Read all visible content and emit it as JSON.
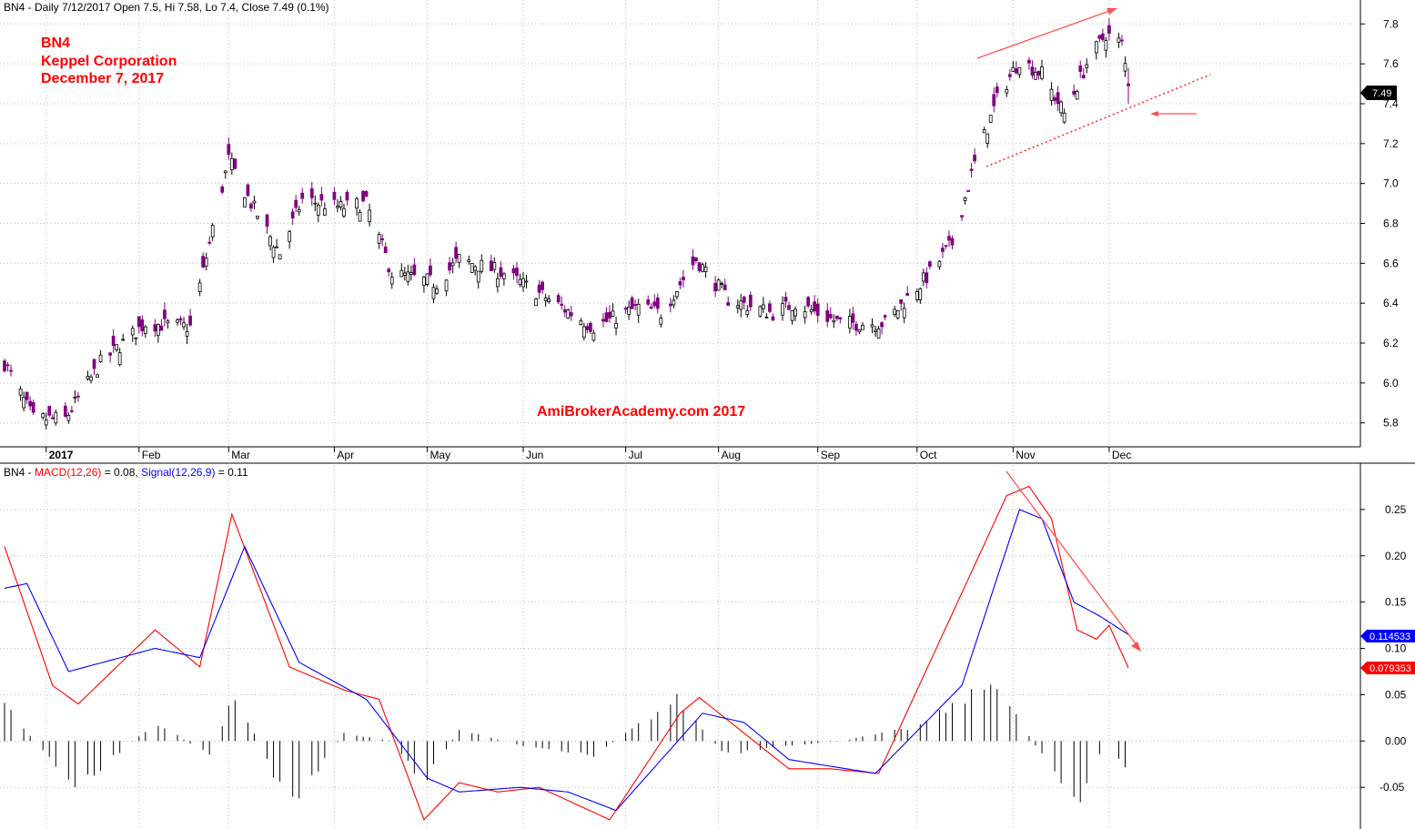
{
  "panels": {
    "price": {
      "header": "BN4 - Daily 7/12/2017 Open 7.5, Hi 7.58, Lo 7.4, Close 7.49 (0.1%)",
      "y_ticks": [
        "7.8",
        "7.6",
        "7.4",
        "7.2",
        "7.0",
        "6.8",
        "6.6",
        "6.4",
        "6.2",
        "6.0",
        "5.8"
      ],
      "last_price_label": "7.49"
    },
    "macd": {
      "header_prefix": "BN4 - ",
      "header_macd": "MACD(12,26)",
      "header_mid": " = 0.08, ",
      "header_signal": "Signal(12,26,9)",
      "header_suffix": " = 0.11",
      "y_ticks": [
        "0.25",
        "0.20",
        "0.15",
        "0.10",
        "0.05",
        "0.00",
        "-0.05"
      ],
      "signal_label": "0.114533",
      "macd_label": "0.079353"
    }
  },
  "x_ticks": [
    "2017",
    "Feb",
    "Mar",
    "Apr",
    "May",
    "Jun",
    "Jul",
    "Aug",
    "Sep",
    "Oct",
    "Nov",
    "Dec"
  ],
  "annotations": {
    "line1": "BN4",
    "line2": "Keppel Corporation",
    "line3": "December 7, 2017",
    "watermark": "AmiBrokerAcademy.com  2017"
  },
  "colors": {
    "bull_candle": "#ffffff",
    "bear_candle": "#800080",
    "macd_line": "#ff0000",
    "signal_line": "#0000ff",
    "histogram": "#000000",
    "annotation": "#ff0000",
    "trendline": "#ff4a4a"
  },
  "chart_data": [
    {
      "type": "candlestick",
      "title": "BN4 - Daily 7/12/2017 Open 7.5, Hi 7.58, Lo 7.4, Close 7.49 (0.1%)",
      "ylim": [
        5.68,
        7.92
      ],
      "x_range": [
        "2016-12-21",
        "2017-12-07"
      ],
      "grid": true,
      "close_keypoints": [
        [
          "2016-12-21",
          6.1
        ],
        [
          "2016-12-30",
          5.82
        ],
        [
          "2017-01-09",
          5.82
        ],
        [
          "2017-01-20",
          6.1
        ],
        [
          "2017-02-03",
          6.3
        ],
        [
          "2017-02-17",
          6.28
        ],
        [
          "2017-03-01",
          7.12
        ],
        [
          "2017-03-08",
          6.9
        ],
        [
          "2017-03-17",
          6.65
        ],
        [
          "2017-03-24",
          6.92
        ],
        [
          "2017-04-05",
          6.88
        ],
        [
          "2017-04-13",
          6.9
        ],
        [
          "2017-04-21",
          6.55
        ],
        [
          "2017-05-05",
          6.5
        ],
        [
          "2017-05-12",
          6.62
        ],
        [
          "2017-05-26",
          6.55
        ],
        [
          "2017-06-09",
          6.42
        ],
        [
          "2017-06-23",
          6.28
        ],
        [
          "2017-07-07",
          6.38
        ],
        [
          "2017-07-14",
          6.35
        ],
        [
          "2017-07-25",
          6.62
        ],
        [
          "2017-08-04",
          6.42
        ],
        [
          "2017-08-18",
          6.35
        ],
        [
          "2017-08-25",
          6.4
        ],
        [
          "2017-09-08",
          6.3
        ],
        [
          "2017-09-22",
          6.3
        ],
        [
          "2017-10-06",
          6.55
        ],
        [
          "2017-10-13",
          6.7
        ],
        [
          "2017-10-20",
          7.1
        ],
        [
          "2017-10-27",
          7.42
        ],
        [
          "2017-11-03",
          7.62
        ],
        [
          "2017-11-10",
          7.55
        ],
        [
          "2017-11-17",
          7.35
        ],
        [
          "2017-11-24",
          7.6
        ],
        [
          "2017-11-30",
          7.75
        ],
        [
          "2017-12-05",
          7.7
        ],
        [
          "2017-12-07",
          7.49
        ]
      ],
      "last_bar": {
        "date": "2017-12-07",
        "open": 7.5,
        "high": 7.58,
        "low": 7.4,
        "close": 7.49
      },
      "annotations": [
        "BN4",
        "Keppel Corporation",
        "December 7, 2017",
        "AmiBrokerAcademy.com  2017"
      ]
    },
    {
      "type": "line",
      "title": "BN4 - MACD(12,26) = 0.08, Signal(12,26,9) = 0.11",
      "ylim": [
        -0.095,
        0.3
      ],
      "grid": true,
      "series": [
        {
          "name": "MACD(12,26)",
          "color": "#ff0000",
          "last": 0.079353,
          "keypoints": [
            [
              "2016-12-21",
              0.21
            ],
            [
              "2017-01-05",
              0.06
            ],
            [
              "2017-01-13",
              0.04
            ],
            [
              "2017-02-06",
              0.12
            ],
            [
              "2017-02-20",
              0.08
            ],
            [
              "2017-03-02",
              0.245
            ],
            [
              "2017-03-20",
              0.08
            ],
            [
              "2017-04-06",
              0.055
            ],
            [
              "2017-04-17",
              0.045
            ],
            [
              "2017-05-01",
              -0.085
            ],
            [
              "2017-05-12",
              -0.045
            ],
            [
              "2017-05-24",
              -0.055
            ],
            [
              "2017-06-06",
              -0.05
            ],
            [
              "2017-06-28",
              -0.085
            ],
            [
              "2017-07-20",
              0.03
            ],
            [
              "2017-07-26",
              0.047
            ],
            [
              "2017-08-23",
              -0.03
            ],
            [
              "2017-09-05",
              -0.03
            ],
            [
              "2017-09-20",
              -0.035
            ],
            [
              "2017-10-16",
              0.16
            ],
            [
              "2017-10-30",
              0.265
            ],
            [
              "2017-11-06",
              0.275
            ],
            [
              "2017-11-13",
              0.24
            ],
            [
              "2017-11-21",
              0.12
            ],
            [
              "2017-11-27",
              0.11
            ],
            [
              "2017-12-01",
              0.125
            ],
            [
              "2017-12-07",
              0.079
            ]
          ]
        },
        {
          "name": "Signal(12,26,9)",
          "color": "#0000ff",
          "last": 0.114533,
          "keypoints": [
            [
              "2016-12-21",
              0.165
            ],
            [
              "2016-12-28",
              0.17
            ],
            [
              "2017-01-10",
              0.075
            ],
            [
              "2017-02-06",
              0.1
            ],
            [
              "2017-02-20",
              0.09
            ],
            [
              "2017-03-06",
              0.21
            ],
            [
              "2017-03-23",
              0.085
            ],
            [
              "2017-04-13",
              0.045
            ],
            [
              "2017-05-02",
              -0.04
            ],
            [
              "2017-05-12",
              -0.055
            ],
            [
              "2017-05-31",
              -0.05
            ],
            [
              "2017-06-15",
              -0.055
            ],
            [
              "2017-06-30",
              -0.075
            ],
            [
              "2017-07-27",
              0.03
            ],
            [
              "2017-08-09",
              0.02
            ],
            [
              "2017-08-23",
              -0.02
            ],
            [
              "2017-09-19",
              -0.035
            ],
            [
              "2017-10-16",
              0.06
            ],
            [
              "2017-11-03",
              0.25
            ],
            [
              "2017-11-10",
              0.24
            ],
            [
              "2017-11-20",
              0.15
            ],
            [
              "2017-11-28",
              0.135
            ],
            [
              "2017-12-07",
              0.115
            ]
          ]
        }
      ],
      "histogram": {
        "name": "MACD - Signal",
        "color": "#000000",
        "keypoints": [
          [
            "2016-12-21",
            0.045
          ],
          [
            "2016-12-30",
            0.0
          ],
          [
            "2017-01-13",
            -0.05
          ],
          [
            "2017-02-06",
            0.02
          ],
          [
            "2017-02-23",
            -0.015
          ],
          [
            "2017-03-03",
            0.05
          ],
          [
            "2017-03-20",
            -0.07
          ],
          [
            "2017-04-06",
            0.008
          ],
          [
            "2017-04-21",
            0.0
          ],
          [
            "2017-05-01",
            -0.045
          ],
          [
            "2017-05-12",
            0.012
          ],
          [
            "2017-06-01",
            -0.005
          ],
          [
            "2017-06-23",
            -0.015
          ],
          [
            "2017-07-19",
            0.045
          ],
          [
            "2017-08-03",
            -0.015
          ],
          [
            "2017-08-23",
            -0.005
          ],
          [
            "2017-09-08",
            0.0
          ],
          [
            "2017-10-02",
            0.015
          ],
          [
            "2017-10-27",
            0.065
          ],
          [
            "2017-11-06",
            0.005
          ],
          [
            "2017-11-21",
            -0.065
          ],
          [
            "2017-11-30",
            0.0
          ],
          [
            "2017-12-07",
            -0.035
          ]
        ]
      }
    }
  ]
}
